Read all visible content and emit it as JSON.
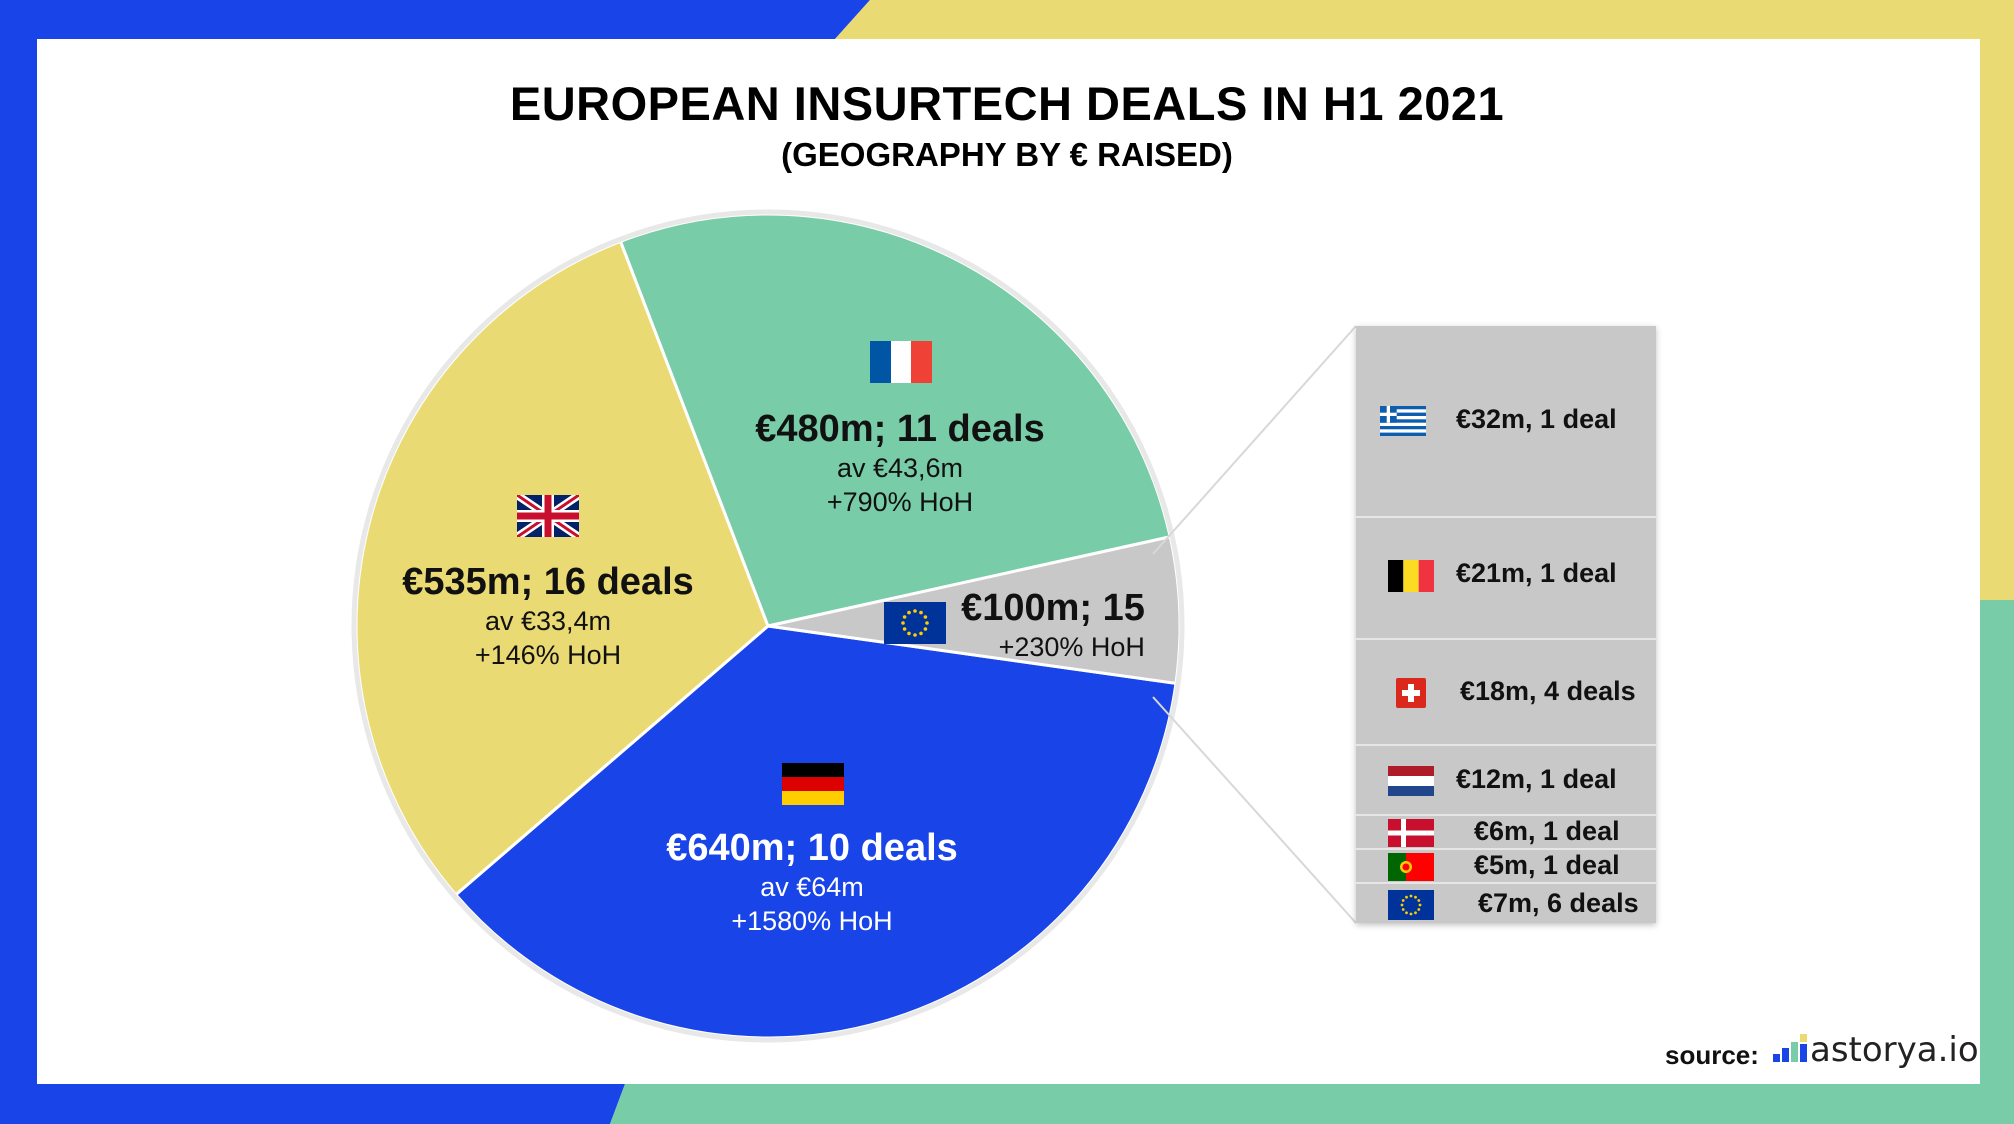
{
  "title": "EUROPEAN INSURTECH DEALS IN H1 2021",
  "subtitle": "(GEOGRAPHY BY € RAISED)",
  "colors": {
    "germany": "#1844e8",
    "uk": "#eada73",
    "france": "#78cca8",
    "other": "#c8c8c8",
    "frame_blue": "#1844e8",
    "frame_yellow": "#eada73",
    "frame_green": "#78cca8"
  },
  "chart_data": {
    "type": "pie",
    "title": "EUROPEAN INSURTECH DEALS IN H1 2021",
    "subtitle": "(GEOGRAPHY BY € RAISED)",
    "slices": [
      {
        "country": "Germany",
        "flag": "germany-flag-icon",
        "value": 640,
        "label": "€640m; 10 deals",
        "avg": "av €64m",
        "growth": "+1580% HoH",
        "color": "#1844e8"
      },
      {
        "country": "United Kingdom",
        "flag": "uk-flag-icon",
        "value": 535,
        "label": "€535m; 16 deals",
        "avg": "av €33,4m",
        "growth": "+146% HoH",
        "color": "#eada73"
      },
      {
        "country": "France",
        "flag": "france-flag-icon",
        "value": 480,
        "label": "€480m; 11 deals",
        "avg": "av €43,6m",
        "growth": "+790% HoH",
        "color": "#78cca8"
      },
      {
        "country": "Other Europe",
        "flag": "eu-flag-icon",
        "value": 100,
        "label": "€100m; 15",
        "avg": "",
        "growth": "+230% HoH",
        "color": "#c8c8c8"
      }
    ],
    "breakdown": [
      {
        "country": "Greece",
        "flag": "greece-flag-icon",
        "value": 32,
        "label": "€32m, 1 deal"
      },
      {
        "country": "Belgium",
        "flag": "belgium-flag-icon",
        "value": 21,
        "label": "€21m, 1 deal"
      },
      {
        "country": "Switzerland",
        "flag": "switzerland-flag-icon",
        "value": 18,
        "label": "€18m, 4 deals"
      },
      {
        "country": "Netherlands",
        "flag": "netherlands-flag-icon",
        "value": 12,
        "label": "€12m, 1 deal"
      },
      {
        "country": "Denmark",
        "flag": "denmark-flag-icon",
        "value": 6,
        "label": "€6m, 1 deal"
      },
      {
        "country": "Portugal",
        "flag": "portugal-flag-icon",
        "value": 5,
        "label": "€5m, 1 deal"
      },
      {
        "country": "Other EU",
        "flag": "eu-flag-icon",
        "value": 7,
        "label": "€7m, 6 deals"
      }
    ]
  },
  "source": {
    "label": "source:",
    "brand": "astorya.io"
  }
}
